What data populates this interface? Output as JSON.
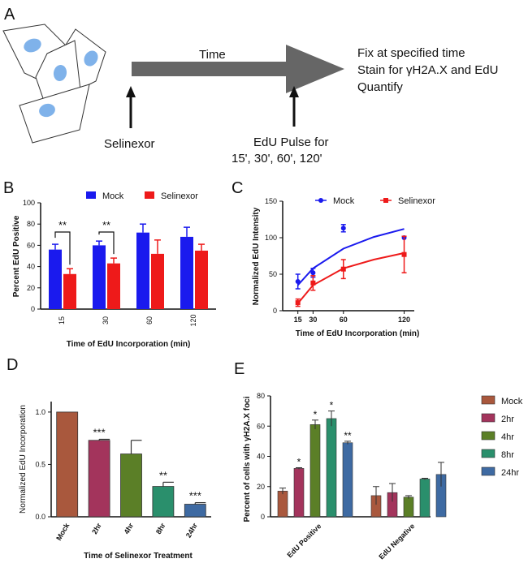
{
  "panels": {
    "a": "A",
    "b": "B",
    "c": "C",
    "d": "D",
    "e": "E"
  },
  "schematic": {
    "time_label": "Time",
    "fix_lines": [
      "Fix at specified time",
      "Stain for γH2A.X and EdU",
      "Quantify"
    ],
    "selinexor_label": "Selinexor",
    "edu_pulse_lines": [
      "EdU Pulse for",
      "15', 30', 60', 120'"
    ]
  },
  "colors": {
    "blue": "#1a1aee",
    "red": "#ee1a1a",
    "arrow": "#666666",
    "cell_nucleus": "#7fb2ea",
    "mock": "#a9583d",
    "hr2": "#a3345c",
    "hr4": "#5b7f27",
    "hr8": "#2a8f6c",
    "hr24": "#3e6aa2"
  },
  "chart_data": [
    {
      "id": "B",
      "type": "bar",
      "title": "",
      "xlabel": "Time of EdU Incorporation (min)",
      "ylabel": "Percent EdU Positive",
      "ylim": [
        0,
        100
      ],
      "yticks": [
        "0",
        "20",
        "40",
        "60",
        "80",
        "100"
      ],
      "categories": [
        "15",
        "30",
        "60",
        "120"
      ],
      "legend_position": "top",
      "series": [
        {
          "name": "Mock",
          "values": [
            56,
            60,
            72,
            68
          ],
          "errors": [
            5,
            4,
            8,
            9
          ]
        },
        {
          "name": "Selinexor",
          "values": [
            33,
            43,
            52,
            55
          ],
          "errors": [
            5,
            5,
            13,
            6
          ]
        }
      ],
      "significance": [
        {
          "category": "15",
          "label": "**"
        },
        {
          "category": "30",
          "label": "**"
        }
      ]
    },
    {
      "id": "C",
      "type": "scatter",
      "title": "",
      "xlabel": "Time of EdU Incorporation (min)",
      "ylabel": "Normalized EdU Intensity",
      "xlim": [
        0,
        130
      ],
      "ylim": [
        0,
        150
      ],
      "xticks": [
        "15",
        "30",
        "60",
        "120"
      ],
      "yticks": [
        "0",
        "50",
        "100",
        "150"
      ],
      "legend_position": "top",
      "series": [
        {
          "name": "Mock",
          "x": [
            15,
            30,
            60,
            120
          ],
          "y": [
            40,
            52,
            113,
            100
          ],
          "errors": [
            10,
            6,
            5,
            0
          ],
          "fit": [
            [
              15,
              35
            ],
            [
              30,
              58
            ],
            [
              60,
              85
            ],
            [
              90,
              101
            ],
            [
              120,
              112
            ]
          ]
        },
        {
          "name": "Selinexor",
          "x": [
            15,
            30,
            60,
            120
          ],
          "y": [
            11,
            38,
            57,
            77
          ],
          "errors": [
            5,
            10,
            13,
            25
          ],
          "fit": [
            [
              15,
              10
            ],
            [
              30,
              35
            ],
            [
              60,
              58
            ],
            [
              90,
              70
            ],
            [
              120,
              79
            ]
          ]
        }
      ]
    },
    {
      "id": "D",
      "type": "bar",
      "title": "",
      "xlabel": "Time of Selinexor Treatment",
      "ylabel": "Normalized EdU Incorporation",
      "ylim": [
        0,
        1.1
      ],
      "yticks": [
        "0.0",
        "0.5",
        "1.0"
      ],
      "categories": [
        "Mock",
        "2hr",
        "4hr",
        "8hr",
        "24hr"
      ],
      "values": [
        1.0,
        0.73,
        0.6,
        0.29,
        0.12
      ],
      "errors": [
        0,
        0.01,
        0.13,
        0.04,
        0.015
      ],
      "significance": [
        "",
        "***",
        "",
        "**",
        "***"
      ]
    },
    {
      "id": "E",
      "type": "bar",
      "title": "",
      "xlabel": "",
      "ylabel": "Percent of cells with γH2A.X foci",
      "ylim": [
        0,
        80
      ],
      "yticks": [
        "0",
        "20",
        "40",
        "60",
        "80"
      ],
      "categories": [
        "EdU Positive",
        "EdU Negative"
      ],
      "legend_position": "right",
      "series": [
        {
          "name": "Mock",
          "values": [
            17,
            14
          ],
          "errors": [
            2,
            6
          ],
          "sig": [
            "",
            ""
          ]
        },
        {
          "name": "2hr",
          "values": [
            32,
            16
          ],
          "errors": [
            0.5,
            6
          ],
          "sig": [
            "*",
            ""
          ]
        },
        {
          "name": "4hr",
          "values": [
            61,
            13
          ],
          "errors": [
            3,
            1
          ],
          "sig": [
            "*",
            ""
          ]
        },
        {
          "name": "8hr",
          "values": [
            65,
            25
          ],
          "errors": [
            5,
            0.5
          ],
          "sig": [
            "*",
            ""
          ]
        },
        {
          "name": "24hr",
          "values": [
            49,
            28
          ],
          "errors": [
            1,
            8
          ],
          "sig": [
            "**",
            ""
          ]
        }
      ]
    }
  ]
}
